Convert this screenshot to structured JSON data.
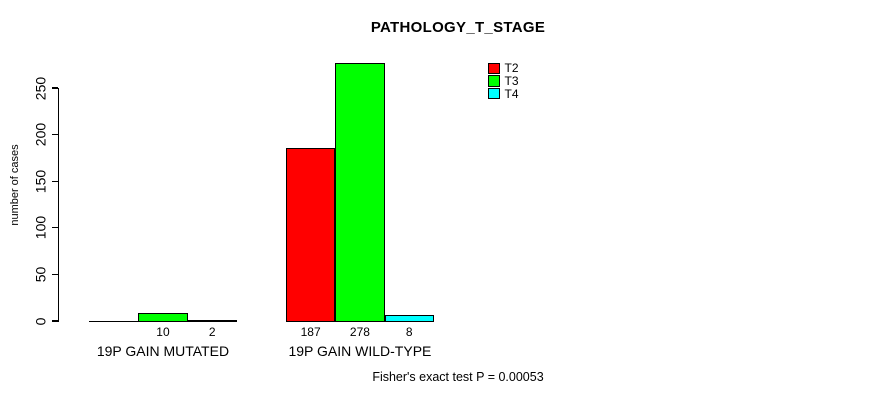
{
  "chart_data": {
    "type": "bar",
    "title": "PATHOLOGY_T_STAGE",
    "ylabel": "number of cases",
    "footer": "Fisher's exact test P = 0.00053",
    "ylim": [
      0,
      250
    ],
    "yticks": [
      "0",
      "50",
      "100",
      "150",
      "200",
      "250"
    ],
    "grid": false,
    "legend_position": "top-right-inside",
    "categories": [
      "19P GAIN MUTATED",
      "19P GAIN WILD-TYPE"
    ],
    "series": [
      {
        "name": "T2",
        "color": "#ff0000",
        "values": [
          0,
          187
        ],
        "labels": [
          "",
          "187"
        ]
      },
      {
        "name": "T3",
        "color": "#00ff00",
        "values": [
          10,
          278
        ],
        "labels": [
          "10",
          "278"
        ]
      },
      {
        "name": "T4",
        "color": "#00ffff",
        "values": [
          2,
          8
        ],
        "labels": [
          "2",
          "8"
        ]
      }
    ]
  }
}
